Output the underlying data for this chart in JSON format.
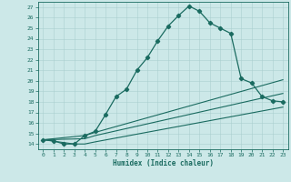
{
  "xlabel": "Humidex (Indice chaleur)",
  "bg_color": "#cce8e8",
  "line_color": "#1a6b60",
  "grid_color": "#aacfcf",
  "xlim": [
    -0.5,
    23.5
  ],
  "ylim": [
    13.5,
    27.5
  ],
  "xticks": [
    0,
    1,
    2,
    3,
    4,
    5,
    6,
    7,
    8,
    9,
    10,
    11,
    12,
    13,
    14,
    15,
    16,
    17,
    18,
    19,
    20,
    21,
    22,
    23
  ],
  "yticks": [
    14,
    15,
    16,
    17,
    18,
    19,
    20,
    21,
    22,
    23,
    24,
    25,
    26,
    27
  ],
  "line1_x": [
    0,
    1,
    2,
    3,
    4,
    5,
    6,
    7,
    8,
    9,
    10,
    11,
    12,
    13,
    14,
    15,
    16,
    17,
    18,
    19,
    20,
    21,
    22,
    23
  ],
  "line1_y": [
    14.4,
    14.3,
    14.0,
    14.0,
    14.8,
    15.2,
    16.8,
    18.5,
    19.2,
    21.0,
    22.2,
    23.8,
    25.2,
    26.2,
    27.1,
    26.6,
    25.5,
    25.0,
    24.5,
    20.2,
    19.8,
    18.5,
    18.1,
    18.0
  ],
  "line2_x": [
    0,
    4,
    5,
    23
  ],
  "line2_y": [
    14.4,
    14.8,
    15.1,
    20.1
  ],
  "line3_x": [
    0,
    4,
    5,
    23
  ],
  "line3_y": [
    14.4,
    14.5,
    14.8,
    18.8
  ],
  "line4_x": [
    0,
    3,
    4,
    5,
    23
  ],
  "line4_y": [
    14.4,
    14.0,
    14.0,
    14.2,
    17.5
  ]
}
